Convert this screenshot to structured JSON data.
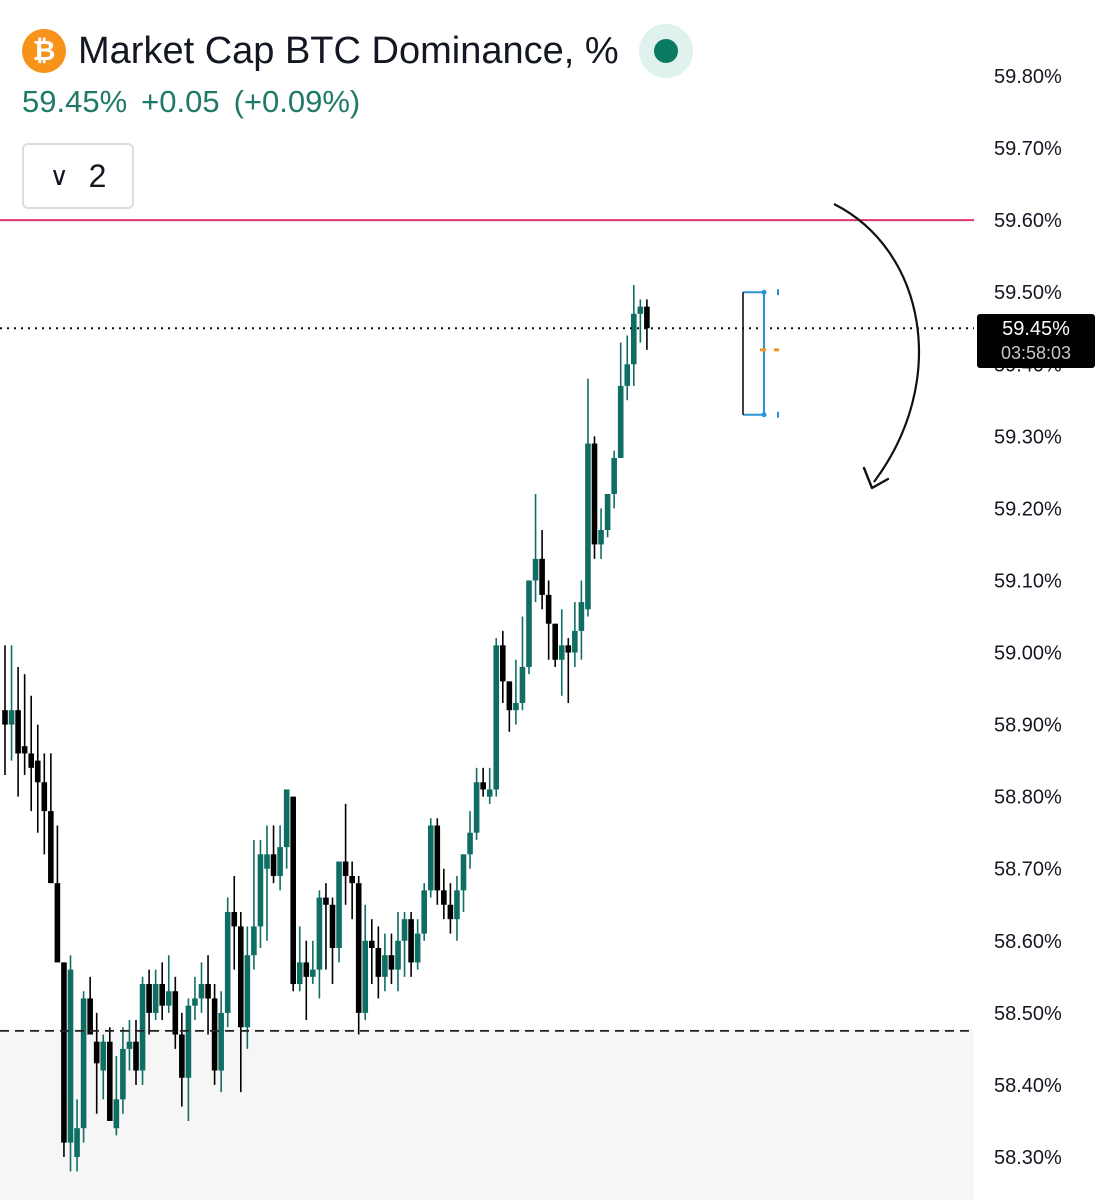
{
  "header": {
    "title": "Market Cap BTC Dominance, %",
    "logo_glyph": "₿",
    "price": "59.45%",
    "change": "+0.05",
    "change_pct": "(+0.09%)",
    "collapse_count": "2",
    "status_icon": "market-open-dot-icon"
  },
  "price_label": {
    "price": "59.45%",
    "countdown": "03:58:03"
  },
  "colors": {
    "up": "#0f6e63",
    "down": "#000000",
    "resistance": "#e0336e",
    "price_text": "#1f7a67",
    "logo": "#f7931a",
    "measure": "#2b94d6"
  },
  "chart_data": {
    "type": "candlestick",
    "title": "Market Cap BTC Dominance, %",
    "y_ticks": [
      "59.80%",
      "59.70%",
      "59.60%",
      "59.50%",
      "59.40%",
      "59.30%",
      "59.20%",
      "59.10%",
      "59.00%",
      "58.90%",
      "58.80%",
      "58.70%",
      "58.60%",
      "58.50%",
      "58.40%",
      "58.30%"
    ],
    "ylim": [
      58.26,
      59.86
    ],
    "resistance_level": 59.6,
    "support_level": 58.475,
    "current_price": 59.45,
    "candles": [
      [
        58.92,
        58.9,
        59.01,
        58.83
      ],
      [
        58.9,
        58.92,
        59.01,
        58.85
      ],
      [
        58.92,
        58.86,
        58.98,
        58.8
      ],
      [
        58.87,
        58.86,
        58.97,
        58.83
      ],
      [
        58.86,
        58.84,
        58.94,
        58.78
      ],
      [
        58.85,
        58.82,
        58.9,
        58.75
      ],
      [
        58.82,
        58.78,
        58.86,
        58.72
      ],
      [
        58.78,
        58.68,
        58.86,
        58.68
      ],
      [
        58.68,
        58.57,
        58.76,
        58.57
      ],
      [
        58.57,
        58.32,
        58.57,
        58.3
      ],
      [
        58.32,
        58.56,
        58.58,
        58.28
      ],
      [
        58.3,
        58.34,
        58.38,
        58.28
      ],
      [
        58.34,
        58.52,
        58.53,
        58.32
      ],
      [
        58.52,
        58.47,
        58.55,
        58.47
      ],
      [
        58.46,
        58.43,
        58.5,
        58.36
      ],
      [
        58.42,
        58.46,
        58.47,
        58.38
      ],
      [
        58.46,
        58.35,
        58.48,
        58.35
      ],
      [
        58.34,
        58.38,
        58.44,
        58.33
      ],
      [
        58.38,
        58.45,
        58.48,
        58.36
      ],
      [
        58.45,
        58.46,
        58.49,
        58.42
      ],
      [
        58.46,
        58.42,
        58.49,
        58.4
      ],
      [
        58.42,
        58.54,
        58.55,
        58.4
      ],
      [
        58.54,
        58.5,
        58.56,
        58.47
      ],
      [
        58.5,
        58.54,
        58.56,
        58.49
      ],
      [
        58.54,
        58.51,
        58.57,
        58.49
      ],
      [
        58.51,
        58.53,
        58.58,
        58.5
      ],
      [
        58.53,
        58.47,
        58.55,
        58.45
      ],
      [
        58.47,
        58.41,
        58.5,
        58.37
      ],
      [
        58.41,
        58.51,
        58.52,
        58.35
      ],
      [
        58.51,
        58.52,
        58.55,
        58.49
      ],
      [
        58.52,
        58.54,
        58.57,
        58.5
      ],
      [
        58.54,
        58.52,
        58.58,
        58.47
      ],
      [
        58.52,
        58.42,
        58.54,
        58.4
      ],
      [
        58.42,
        58.5,
        58.53,
        58.39
      ],
      [
        58.5,
        58.64,
        58.66,
        58.48
      ],
      [
        58.64,
        58.62,
        58.69,
        58.56
      ],
      [
        58.62,
        58.48,
        58.64,
        58.39
      ],
      [
        58.48,
        58.58,
        58.62,
        58.45
      ],
      [
        58.58,
        58.62,
        58.74,
        58.56
      ],
      [
        58.62,
        58.72,
        58.74,
        58.59
      ],
      [
        58.7,
        58.72,
        58.76,
        58.6
      ],
      [
        58.72,
        58.69,
        58.76,
        58.68
      ],
      [
        58.69,
        58.73,
        58.76,
        58.67
      ],
      [
        58.73,
        58.81,
        58.81,
        58.7
      ],
      [
        58.8,
        58.54,
        58.8,
        58.53
      ],
      [
        58.54,
        58.57,
        58.62,
        58.53
      ],
      [
        58.57,
        58.55,
        58.6,
        58.49
      ],
      [
        58.55,
        58.56,
        58.6,
        58.54
      ],
      [
        58.56,
        58.66,
        58.67,
        58.52
      ],
      [
        58.66,
        58.65,
        58.68,
        58.56
      ],
      [
        58.65,
        58.59,
        58.66,
        58.54
      ],
      [
        58.59,
        58.71,
        58.71,
        58.57
      ],
      [
        58.71,
        58.69,
        58.79,
        58.65
      ],
      [
        58.69,
        58.68,
        58.71,
        58.63
      ],
      [
        58.68,
        58.5,
        58.69,
        58.47
      ],
      [
        58.5,
        58.6,
        58.65,
        58.49
      ],
      [
        58.6,
        58.59,
        58.63,
        58.54
      ],
      [
        58.59,
        58.55,
        58.62,
        58.52
      ],
      [
        58.55,
        58.58,
        58.61,
        58.53
      ],
      [
        58.58,
        58.56,
        58.61,
        58.54
      ],
      [
        58.56,
        58.6,
        58.64,
        58.53
      ],
      [
        58.6,
        58.63,
        58.64,
        58.55
      ],
      [
        58.63,
        58.57,
        58.64,
        58.55
      ],
      [
        58.57,
        58.61,
        58.63,
        58.56
      ],
      [
        58.61,
        58.67,
        58.68,
        58.6
      ],
      [
        58.67,
        58.76,
        58.77,
        58.66
      ],
      [
        58.76,
        58.67,
        58.77,
        58.65
      ],
      [
        58.67,
        58.65,
        58.7,
        58.63
      ],
      [
        58.65,
        58.63,
        58.68,
        58.61
      ],
      [
        58.63,
        58.67,
        58.69,
        58.6
      ],
      [
        58.67,
        58.72,
        58.72,
        58.64
      ],
      [
        58.72,
        58.75,
        58.78,
        58.7
      ],
      [
        58.75,
        58.82,
        58.84,
        58.74
      ],
      [
        58.82,
        58.81,
        58.84,
        58.8
      ],
      [
        58.8,
        58.81,
        58.84,
        58.79
      ],
      [
        58.81,
        59.01,
        59.02,
        58.8
      ],
      [
        59.01,
        58.96,
        59.03,
        58.93
      ],
      [
        58.96,
        58.92,
        58.96,
        58.89
      ],
      [
        58.92,
        58.93,
        58.99,
        58.9
      ],
      [
        58.93,
        58.98,
        59.05,
        58.92
      ],
      [
        58.98,
        59.1,
        59.1,
        58.97
      ],
      [
        59.1,
        59.13,
        59.22,
        59.07
      ],
      [
        59.13,
        59.08,
        59.17,
        59.06
      ],
      [
        59.08,
        59.04,
        59.1,
        58.99
      ],
      [
        59.04,
        58.99,
        59.04,
        58.98
      ],
      [
        58.99,
        59.01,
        59.06,
        58.94
      ],
      [
        59.01,
        59.0,
        59.02,
        58.93
      ],
      [
        59.0,
        59.03,
        59.07,
        58.98
      ],
      [
        59.03,
        59.07,
        59.1,
        58.99
      ],
      [
        59.06,
        59.29,
        59.38,
        59.05
      ],
      [
        59.29,
        59.15,
        59.3,
        59.13
      ],
      [
        59.15,
        59.17,
        59.2,
        59.13
      ],
      [
        59.17,
        59.22,
        59.22,
        59.16
      ],
      [
        59.22,
        59.27,
        59.28,
        59.2
      ],
      [
        59.27,
        59.37,
        59.43,
        59.27
      ],
      [
        59.37,
        59.4,
        59.44,
        59.35
      ],
      [
        59.4,
        59.47,
        59.51,
        59.37
      ],
      [
        59.47,
        59.48,
        59.49,
        59.43
      ],
      [
        59.48,
        59.45,
        59.49,
        59.42
      ]
    ]
  },
  "measure_tool": {
    "top": 59.5,
    "bottom": 59.33,
    "marker": 59.42
  }
}
